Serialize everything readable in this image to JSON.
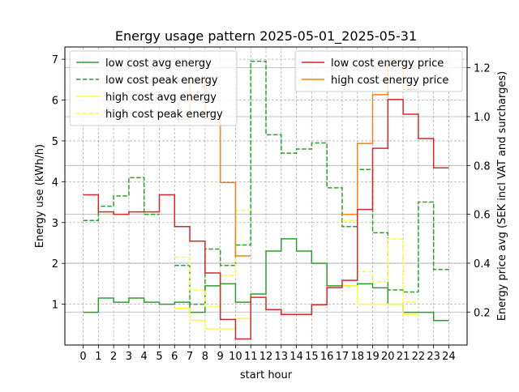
{
  "chart_data": {
    "type": "line",
    "title": "Energy usage pattern 2025-05-01_2025-05-31",
    "xlabel": "start hour",
    "ylabel_left": "Energy use (kWh/h)",
    "ylabel_right": "Energy price avg (SEK incl VAT and surcharges)",
    "x_ticks": [
      "0",
      "1",
      "2",
      "3",
      "4",
      "5",
      "6",
      "7",
      "8",
      "9",
      "10",
      "11",
      "12",
      "13",
      "14",
      "15",
      "16",
      "17",
      "18",
      "19",
      "20",
      "21",
      "22",
      "23",
      "24"
    ],
    "y_left_ticks": [
      "1",
      "2",
      "3",
      "4",
      "5",
      "6",
      "7"
    ],
    "y_right_ticks": [
      "0.2",
      "0.4",
      "0.6",
      "0.8",
      "1.0",
      "1.2"
    ],
    "xlim": [
      -1.2,
      25.2
    ],
    "ylim_left": [
      0,
      7.3
    ],
    "ylim_right": [
      0.065,
      1.285
    ],
    "grid": true,
    "legend_left": "top-left",
    "legend_right": "top-right",
    "colors": {
      "green": "#2ca02c",
      "yellow": "#ffff33",
      "red": "#d62728",
      "orange": "#ff7f0e",
      "grid": "#b0b0b0"
    },
    "series": [
      {
        "name": "low cost avg energy",
        "axis": "left",
        "style": "solid",
        "color": "#2ca02c",
        "x": [
          0,
          1,
          2,
          3,
          4,
          5,
          6,
          7,
          8,
          9,
          10,
          11,
          12,
          13,
          14,
          15,
          16,
          17,
          18,
          19,
          20,
          21,
          22,
          23,
          24
        ],
        "values": [
          0.8,
          1.15,
          1.05,
          1.15,
          1.05,
          1.0,
          1.05,
          0.8,
          1.45,
          1.5,
          1.05,
          1.25,
          2.3,
          2.6,
          2.3,
          2.0,
          1.45,
          1.45,
          1.5,
          1.4,
          1.0,
          0.8,
          0.8,
          0.6,
          null
        ]
      },
      {
        "name": "low cost peak energy",
        "axis": "left",
        "style": "dashed",
        "color": "#2ca02c",
        "x": [
          0,
          1,
          2,
          3,
          4,
          5,
          6,
          7,
          8,
          9,
          10,
          11,
          12,
          13,
          14,
          15,
          16,
          17,
          18,
          19,
          20,
          21,
          22,
          23,
          24
        ],
        "values": [
          3.05,
          3.4,
          3.65,
          4.1,
          3.2,
          null,
          1.95,
          1.0,
          2.35,
          1.95,
          2.45,
          6.95,
          5.15,
          4.7,
          4.8,
          4.95,
          3.85,
          2.9,
          4.3,
          2.75,
          1.35,
          1.3,
          3.5,
          1.85,
          null
        ]
      },
      {
        "name": "high cost avg energy",
        "axis": "left",
        "style": "solid",
        "color": "#ffff33",
        "x": [
          0,
          1,
          2,
          3,
          4,
          5,
          6,
          7,
          8,
          9,
          10,
          11,
          12,
          13,
          14,
          15,
          16,
          17,
          18,
          19,
          20,
          21,
          22,
          23,
          24
        ],
        "values": [
          null,
          null,
          null,
          null,
          null,
          null,
          0.9,
          0.6,
          0.4,
          0.4,
          0.65,
          null,
          null,
          null,
          null,
          null,
          null,
          1.45,
          1.0,
          1.0,
          1.0,
          0.75,
          null,
          null,
          null
        ]
      },
      {
        "name": "high cost peak energy",
        "axis": "left",
        "style": "dashed",
        "color": "#ffff33",
        "x": [
          0,
          1,
          2,
          3,
          4,
          5,
          6,
          7,
          8,
          9,
          10,
          11,
          12,
          13,
          14,
          15,
          16,
          17,
          18,
          19,
          20,
          21,
          22,
          23,
          24
        ],
        "values": [
          null,
          null,
          null,
          null,
          null,
          null,
          2.15,
          1.35,
          0.95,
          1.7,
          3.3,
          null,
          null,
          null,
          null,
          null,
          null,
          3.05,
          1.8,
          1.55,
          2.6,
          1.05,
          null,
          null,
          null
        ]
      },
      {
        "name": "low cost energy price",
        "axis": "right",
        "style": "solid",
        "color": "#d62728",
        "x": [
          0,
          1,
          2,
          3,
          4,
          5,
          6,
          7,
          8,
          9,
          10,
          11,
          12,
          13,
          14,
          15,
          16,
          17,
          18,
          19,
          20,
          21,
          22,
          23,
          24
        ],
        "values": [
          0.68,
          0.61,
          0.6,
          0.61,
          0.61,
          0.68,
          0.55,
          0.49,
          0.36,
          0.17,
          0.09,
          0.26,
          0.21,
          0.19,
          0.19,
          0.23,
          0.3,
          0.33,
          0.62,
          0.87,
          1.07,
          1.01,
          0.91,
          0.79,
          null
        ]
      },
      {
        "name": "high cost energy price",
        "axis": "right",
        "style": "solid",
        "color": "#ff7f0e",
        "x": [
          0,
          1,
          2,
          3,
          4,
          5,
          6,
          7,
          8,
          9,
          10,
          11,
          12,
          13,
          14,
          15,
          16,
          17,
          18,
          19,
          20,
          21,
          22,
          23,
          24
        ],
        "values": [
          null,
          null,
          null,
          null,
          null,
          null,
          0.99,
          1.14,
          0.99,
          0.73,
          0.43,
          null,
          null,
          null,
          null,
          null,
          null,
          0.6,
          0.89,
          1.09,
          1.23,
          1.11,
          null,
          null,
          null
        ]
      }
    ]
  }
}
